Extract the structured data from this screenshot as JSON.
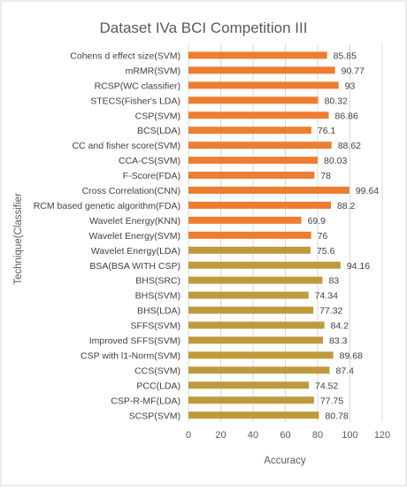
{
  "chart_data": {
    "type": "bar",
    "orientation": "horizontal",
    "title": "Dataset IVa BCI Competition III",
    "xlabel": "Accuracy",
    "ylabel": "Technique(Classifier",
    "xlim": [
      0,
      120
    ],
    "x_ticks": [
      0,
      20,
      40,
      60,
      80,
      100,
      120
    ],
    "grid": "vertical",
    "legend": "none",
    "colors": {
      "orange": "#ED7D31",
      "olive": "#BF9A3C"
    },
    "categories": [
      "Cohens d effect size(SVM)",
      "mRMR(SVM)",
      "RCSP(WC classifier)",
      "STECS(Fisher's LDA)",
      "CSP(SVM)",
      "BCS(LDA)",
      "CC and fisher score(SVM)",
      "CCA-CS(SVM)",
      "F-Score(FDA)",
      "Cross Correlation(CNN)",
      "RCM based genetic algorithm(FDA)",
      "Wavelet Energy(KNN)",
      "Wavelet Energy(SVM)",
      "Wavelet Energy(LDA)",
      "BSA(BSA WITH CSP)",
      "BHS(SRC)",
      "BHS(SVM)",
      "BHS(LDA)",
      "SFFS(SVM)",
      "Improved SFFS(SVM)",
      "CSP with l1-Norm(SVM)",
      "CCS(SVM)",
      "PCC(LDA)",
      "CSP-R-MF(LDA)",
      "SCSP(SVM)"
    ],
    "values": [
      85.85,
      90.77,
      93,
      80.32,
      86.86,
      76.1,
      88.62,
      80.03,
      78,
      99.64,
      88.2,
      69.9,
      76,
      75.6,
      94.16,
      83,
      74.34,
      77.32,
      84.2,
      83.3,
      89.68,
      87.4,
      74.52,
      77.75,
      80.78
    ],
    "value_labels": [
      "85.85",
      "90.77",
      "93",
      "80.32",
      "86.86",
      "76.1",
      "88.62",
      "80.03",
      "78",
      "99.64",
      "88.2",
      "69.9",
      "76",
      "75.6",
      "94.16",
      "83",
      "74.34",
      "77.32",
      "84.2",
      "83.3",
      "89.68",
      "87.4",
      "74.52",
      "77.75",
      "80.78"
    ],
    "bar_colors": [
      "orange",
      "orange",
      "orange",
      "orange",
      "orange",
      "orange",
      "orange",
      "orange",
      "orange",
      "orange",
      "orange",
      "orange",
      "orange",
      "olive",
      "olive",
      "olive",
      "olive",
      "olive",
      "olive",
      "olive",
      "olive",
      "olive",
      "olive",
      "olive",
      "olive"
    ]
  }
}
